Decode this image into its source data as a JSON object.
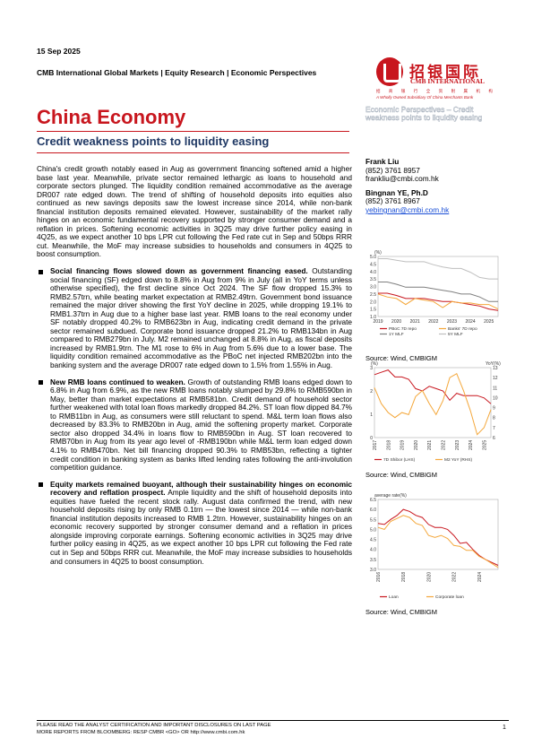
{
  "header": {
    "date": "15 Sep 2025",
    "dept": "CMB International Global Markets | Equity Research | Economic Perspectives"
  },
  "logo": {
    "cn": "招银国际",
    "en": "CMB INTERNATIONAL",
    "cn_sub": "招 商 银 行 全 资 附 属 机 构",
    "sub": "A Wholly Owned Subsidiary Of China Merchants Bank",
    "ghost": "Economic Perspectives – Credit weakness points to liquidity easing"
  },
  "title": "China Economy",
  "subtitle": "Credit weakness points to liquidity easing",
  "intro": "China's credit growth notably eased in Aug as government financing softened amid a higher base last year. Meanwhile, private sector remained lethargic as loans to household and corporate sectors plunged. The liquidity condition remained accommodative as the average DR007 rate edged down. The trend of shifting of household deposits into equities also continued as new savings deposits saw the lowest increase since 2014, while non-bank financial institution deposits remained elevated. However, sustainability of the market rally hinges on an economic fundamental recovery supported by stronger consumer demand and a reflation in prices. Softening economic activities in 3Q25 may drive further policy easing in 4Q25, as we expect another 10 bps LPR cut following the Fed rate cut in Sep and 50bps RRR cut. Meanwhile, the MoF may increase subsidies to households and consumers in 4Q25 to boost consumption.",
  "bullets": [
    {
      "lead": "Social financing flows slowed down as government financing eased.",
      "text": " Outstanding social financing (SF) edged down to 8.8% in Aug from 9% in July (all in YoY terms unless otherwise specified), the first decline since Oct 2024. The SF flow dropped 15.3% to RMB2.57trn, while beating market expectation at RMB2.49trn. Government bond issuance remained the major driver showing the first YoY decline in 2025, while dropping 19.1% to RMB1.37trn in Aug due to a higher base last year. RMB loans to the real economy under SF notably dropped 40.2% to RMB623bn in Aug, indicating credit demand in the private sector remained subdued. Corporate bond issuance dropped 21.2% to RMB134bn in Aug compared to RMB279bn in July. M2 remained unchanged at 8.8% in Aug, as fiscal deposits increased by RMB1.9trn. The M1 rose to 6% in Aug from 5.6% due to a lower base. The liquidity condition remained accommodative as the PBoC net injected RMB202bn into the banking system and the average DR007 rate edged down to 1.5% from 1.55% in Aug."
    },
    {
      "lead": "New RMB loans continued to weaken.",
      "text": " Growth of outstanding RMB loans edged down to 6.8% in Aug from 6.9%, as the new RMB loans notably slumped by 29.8% to RMB590bn in May, better than market expectations at RMB581bn. Credit demand of household sector further weakened with total loan flows markedly dropped 84.2%. ST loan flow dipped 84.7% to RMB11bn in Aug, as consumers were still reluctant to spend. M&L term loan flows also decreased by 83.3% to RMB20bn in Aug, amid the softening property market. Corporate sector also dropped 34.4% in loans flow to RMB590bn in Aug. ST loan recovered to RMB70bn in Aug from its year ago level of -RMB190bn while M&L term loan edged down 4.1% to RMB470bn. Net bill financing dropped 90.3% to RMB53bn, reflecting a tighter credit condition in banking system as banks lifted lending rates following the anti-involution competition guidance."
    },
    {
      "lead": "Equity markets remained buoyant, although their sustainability hinges on economic recovery and reflation prospect.",
      "text": " Ample liquidity and the shift of household deposits into equities have fueled the recent stock rally. August data confirmed the trend, with new household deposits rising by only RMB 0.1trn — the lowest since 2014 — while non-bank financial institution deposits increased to RMB 1.2trn. However, sustainability hinges on an economic recovery supported by stronger consumer demand and a reflation in prices alongside improving corporate earnings. Softening economic activities in 3Q25 may drive further policy easing in 4Q25, as we expect another 10 bps LPR cut following the Fed rate cut in Sep and 50bps RRR cut. Meanwhile, the MoF may increase subsidies to households and consumers in 4Q25 to boost consumption."
    }
  ],
  "analysts": [
    {
      "name": "Frank Liu",
      "phone": "(852) 3761 8957",
      "email": "frankliu@cmbi.com.hk"
    },
    {
      "name": "Bingnan YE, Ph.D",
      "phone": "(852) 3761 8967",
      "email": "yebingnan@cmbi.com.hk"
    }
  ],
  "chart_data": [
    {
      "type": "line",
      "ylabel": "(%)",
      "ylim": [
        1.0,
        5.0
      ],
      "yticks": [
        "1.0",
        "1.5",
        "2.0",
        "2.5",
        "3.0",
        "3.5",
        "4.0",
        "4.5",
        "5.0"
      ],
      "xticks": [
        "2019",
        "2020",
        "2021",
        "2022",
        "2023",
        "2024",
        "2025"
      ],
      "x": [
        2019,
        2019.5,
        2020,
        2020.5,
        2021,
        2021.5,
        2022,
        2022.5,
        2023,
        2023.5,
        2024,
        2024.5,
        2025,
        2025.5
      ],
      "series": [
        {
          "name": "PBoC 7D repo",
          "color": "#c8161e",
          "values": [
            2.55,
            2.55,
            2.4,
            2.2,
            2.2,
            2.2,
            2.1,
            2.0,
            2.0,
            1.9,
            1.8,
            1.7,
            1.5,
            1.4
          ]
        },
        {
          "name": "Banks' 7D repo",
          "color": "#f4a73a",
          "values": [
            2.5,
            2.3,
            2.2,
            1.8,
            2.2,
            2.1,
            2.0,
            1.6,
            2.0,
            1.9,
            1.9,
            1.8,
            1.8,
            1.5
          ]
        },
        {
          "name": "1Y MLF",
          "color": "#7f7f7f",
          "values": [
            3.3,
            3.3,
            3.15,
            2.95,
            2.95,
            2.95,
            2.85,
            2.75,
            2.65,
            2.5,
            2.5,
            2.3,
            2.0,
            2.0
          ]
        },
        {
          "name": "5Y MLF",
          "color": "#bfbfbf",
          "values": [
            4.85,
            4.85,
            4.75,
            4.65,
            4.65,
            4.65,
            4.45,
            4.3,
            4.2,
            4.2,
            3.95,
            3.6,
            3.5,
            3.5
          ]
        }
      ],
      "source": "Source: Wind, CMBIGM"
    },
    {
      "type": "line",
      "ylabel_left": "(%)",
      "ylabel_right": "YoY(%)",
      "ylim_left": [
        0,
        3
      ],
      "ylim_right": [
        6,
        13
      ],
      "yticks_left": [
        "0",
        "1",
        "2",
        "3"
      ],
      "yticks_right": [
        "6",
        "7",
        "8",
        "9",
        "10",
        "11",
        "12",
        "13"
      ],
      "xticks": [
        "2017",
        "2018",
        "2019",
        "2020",
        "2021",
        "2022",
        "2023",
        "2024",
        "2025"
      ],
      "x": [
        2017,
        2017.5,
        2018,
        2018.5,
        2019,
        2019.5,
        2020,
        2020.5,
        2021,
        2021.5,
        2022,
        2022.5,
        2023,
        2023.5,
        2024,
        2024.5,
        2025,
        2025.5
      ],
      "series": [
        {
          "name": "7D Shibor (LHS)",
          "color": "#c8161e",
          "axis": "left",
          "values": [
            2.7,
            2.8,
            2.9,
            2.6,
            2.6,
            2.5,
            2.1,
            2.0,
            2.2,
            2.1,
            2.0,
            1.6,
            1.9,
            1.8,
            1.8,
            1.8,
            1.7,
            1.45
          ]
        },
        {
          "name": "M2 YoY (RHS)",
          "color": "#f4a73a",
          "axis": "right",
          "values": [
            11.0,
            9.4,
            8.5,
            8.0,
            8.5,
            8.3,
            10.1,
            10.7,
            9.4,
            8.3,
            9.7,
            12.0,
            12.4,
            10.7,
            8.7,
            6.3,
            7.0,
            8.8
          ]
        }
      ],
      "source": "Source: Wind, CMBIGM"
    },
    {
      "type": "line",
      "ylabel": "average rate(%)",
      "ylim": [
        3.0,
        6.5
      ],
      "yticks": [
        "3.0",
        "3.5",
        "4.0",
        "4.5",
        "5.0",
        "5.5",
        "6.0",
        "6.5"
      ],
      "xticks": [
        "2016",
        "2018",
        "2020",
        "2022",
        "2024"
      ],
      "x": [
        2016,
        2016.5,
        2017,
        2017.5,
        2018,
        2018.5,
        2019,
        2019.5,
        2020,
        2020.5,
        2021,
        2021.5,
        2022,
        2022.5,
        2023,
        2023.5,
        2024,
        2024.5,
        2025,
        2025.5
      ],
      "series": [
        {
          "name": "Loan",
          "color": "#c8161e",
          "values": [
            5.3,
            5.25,
            5.5,
            5.7,
            6.0,
            5.9,
            5.7,
            5.6,
            5.25,
            5.1,
            5.1,
            5.0,
            4.7,
            4.3,
            4.35,
            4.0,
            3.7,
            3.5,
            3.35,
            3.2
          ]
        },
        {
          "name": "Corporate loan",
          "color": "#f4a73a",
          "values": [
            5.1,
            5.0,
            5.4,
            5.55,
            5.7,
            5.6,
            5.3,
            5.2,
            4.7,
            4.6,
            4.7,
            4.55,
            4.2,
            4.15,
            3.95,
            3.95,
            3.65,
            3.5,
            3.3,
            3.1
          ]
        }
      ],
      "source": "Source: Wind, CMBIGM"
    }
  ],
  "footer": {
    "line1": "PLEASE READ THE ANALYST CERTIFICATION AND IMPORTANT DISCLOSURES ON LAST PAGE",
    "line2": "MORE REPORTS FROM BLOOMBERG: RESP CMBR <GO> OR http://www.cmbi.com.hk",
    "page": "1"
  }
}
